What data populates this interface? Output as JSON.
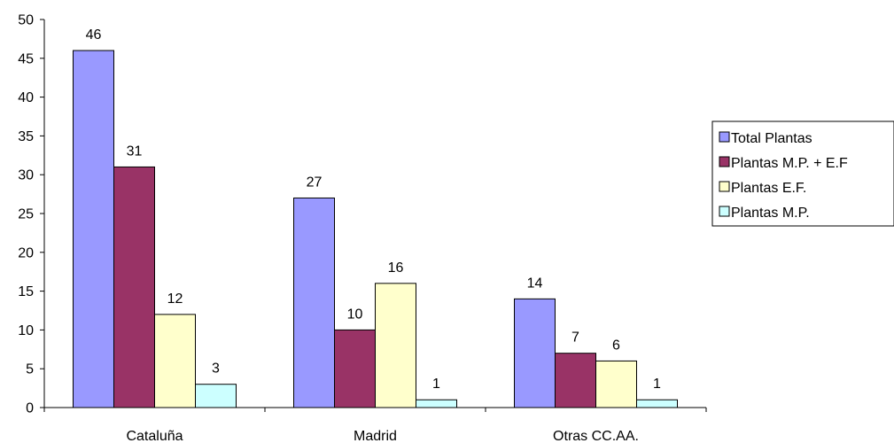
{
  "chart_data": {
    "type": "bar",
    "categories": [
      "Cataluña",
      "Madrid",
      "Otras CC.AA."
    ],
    "series": [
      {
        "name": "Total Plantas",
        "values": [
          46,
          27,
          14
        ],
        "color": "#9999FF"
      },
      {
        "name": "Plantas M.P. + E.F",
        "values": [
          31,
          10,
          7
        ],
        "color": "#993366"
      },
      {
        "name": "Plantas E.F.",
        "values": [
          12,
          16,
          6
        ],
        "color": "#FFFFCC"
      },
      {
        "name": "Plantas M.P.",
        "values": [
          3,
          1,
          1
        ],
        "color": "#CCFFFF"
      }
    ],
    "title": "",
    "xlabel": "",
    "ylabel": "",
    "ylim": [
      0,
      50
    ],
    "yticks": [
      "0",
      "5",
      "10",
      "15",
      "20",
      "25",
      "30",
      "35",
      "40",
      "45",
      "50"
    ],
    "data_labels": true,
    "grid": false,
    "legend_position": "right"
  }
}
